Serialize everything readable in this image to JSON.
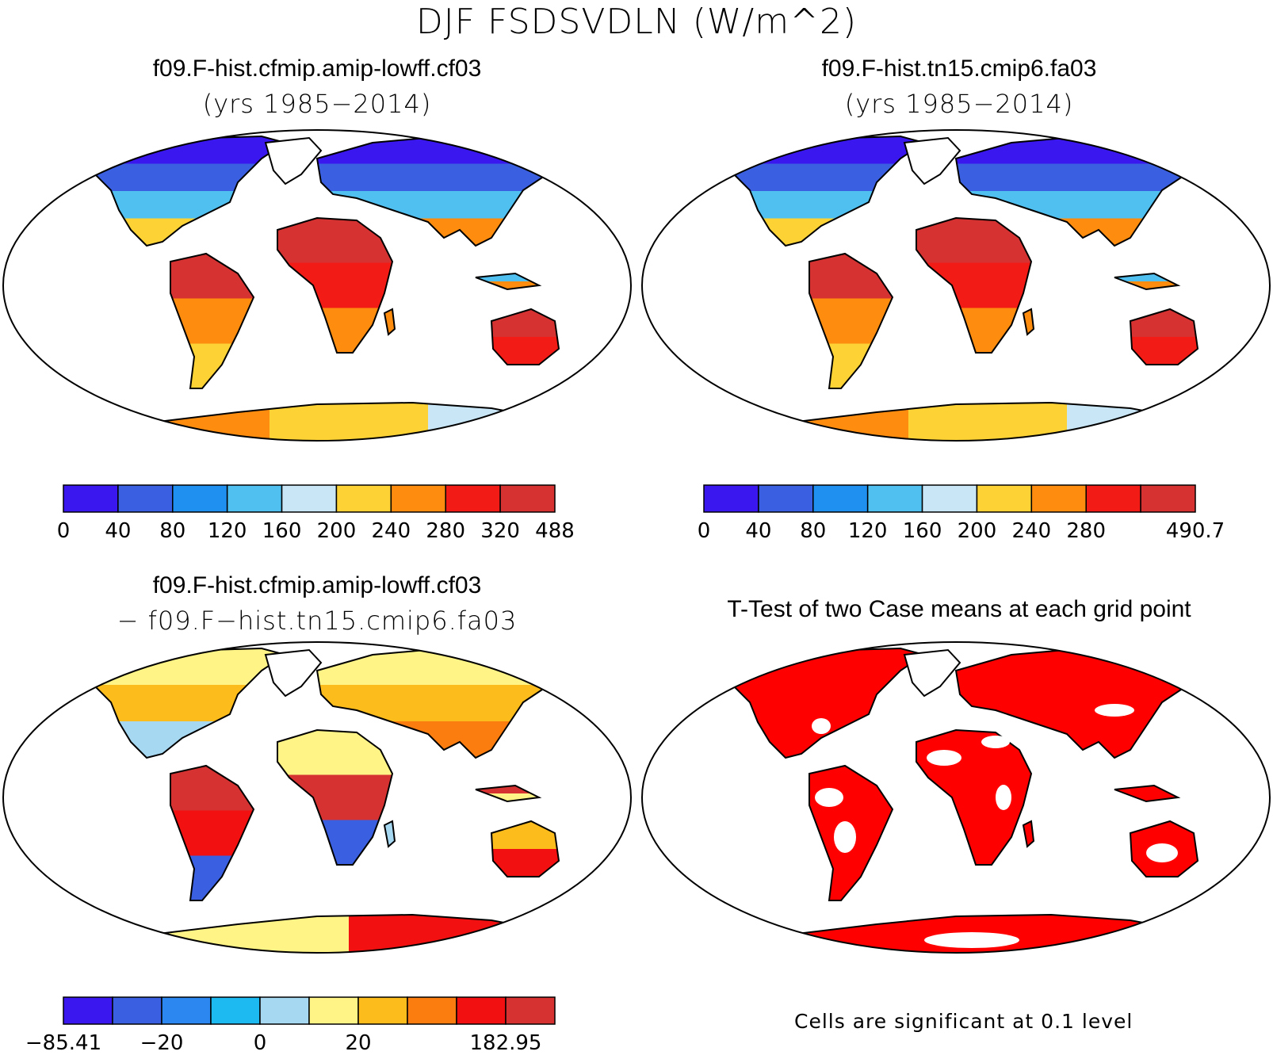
{
  "title": "DJF FSDSVDLN (W/m^2)",
  "panels": {
    "top_left": {
      "title": "f09.F-hist.cfmip.amip-lowff.cf03",
      "subtitle": "(yrs 1985−2014)",
      "colorbar": {
        "colors": [
          "#3a17ef",
          "#3a5fe0",
          "#1f8ff0",
          "#4fc0f0",
          "#c8e6f6",
          "#fcd235",
          "#fd8c0f",
          "#f21b16",
          "#d63232"
        ],
        "labels": [
          "0",
          "40",
          "80",
          "120",
          "160",
          "200",
          "240",
          "280",
          "320",
          "488"
        ]
      }
    },
    "top_right": {
      "title": "f09.F-hist.tn15.cmip6.fa03",
      "subtitle": "(yrs 1985−2014)",
      "colorbar": {
        "colors": [
          "#3a17ef",
          "#3a5fe0",
          "#1f8ff0",
          "#4fc0f0",
          "#c8e6f6",
          "#fcd235",
          "#fd8c0f",
          "#f21b16",
          "#d63232"
        ],
        "labels": [
          "0",
          "40",
          "80",
          "120",
          "160",
          "200",
          "240",
          "280",
          "",
          "490.7"
        ]
      }
    },
    "bottom_left": {
      "title": "f09.F-hist.cfmip.amip-lowff.cf03",
      "subtitle": "− f09.F−hist.tn15.cmip6.fa03",
      "colorbar": {
        "colors": [
          "#3a17ef",
          "#3a5fe0",
          "#2c87f0",
          "#1cbaf0",
          "#a6d8f2",
          "#fff485",
          "#fcbc1c",
          "#fb7d0f",
          "#f21010",
          "#d63232"
        ],
        "labels": [
          "−85.41",
          "",
          "−20",
          "",
          "0",
          "",
          "20",
          "",
          "",
          "182.95"
        ]
      }
    },
    "bottom_right": {
      "title": "T-Test of two Case means at each grid point",
      "footnote": "Cells are significant at 0.1 level",
      "significant_color": "#ff0000"
    }
  }
}
